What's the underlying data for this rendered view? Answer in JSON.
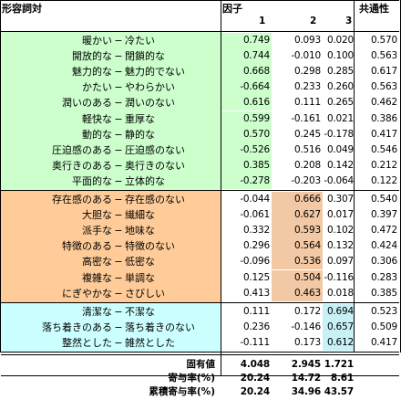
{
  "header": {
    "col_adjective": "形容詞対",
    "col_factor": "因子",
    "factor_numbers": [
      "1",
      "2",
      "3"
    ],
    "col_communality": "共通性"
  },
  "groups": [
    {
      "color": "#ccffcc",
      "rows": [
        {
          "left": "暖かい",
          "right": "冷たい",
          "f1": "0.749",
          "f2": "0.093",
          "f3": "0.020",
          "h": "0.570"
        },
        {
          "left": "開放的な",
          "right": "閉鎖的な",
          "f1": "0.744",
          "f2": "-0.010",
          "f3": "0.100",
          "h": "0.563"
        },
        {
          "left": "魅力的な",
          "right": "魅力的でない",
          "f1": "0.668",
          "f2": "0.298",
          "f3": "0.285",
          "h": "0.617"
        },
        {
          "left": "かたい",
          "right": "やわらかい",
          "f1": "-0.664",
          "f2": "0.233",
          "f3": "0.260",
          "h": "0.563"
        },
        {
          "left": "潤いのある",
          "right": "潤いのない",
          "f1": "0.616",
          "f2": "0.111",
          "f3": "0.265",
          "h": "0.462"
        },
        {
          "left": "軽快な",
          "right": "重厚な",
          "f1": "0.599",
          "f2": "-0.161",
          "f3": "0.021",
          "h": "0.386"
        },
        {
          "left": "動的な",
          "right": "静的な",
          "f1": "0.570",
          "f2": "0.245",
          "f3": "-0.178",
          "h": "0.417"
        },
        {
          "left": "圧迫感のある",
          "right": "圧迫感のない",
          "f1": "-0.526",
          "f2": "0.516",
          "f3": "0.049",
          "h": "0.546"
        },
        {
          "left": "奥行きのある",
          "right": "奥行きのない",
          "f1": "0.385",
          "f2": "0.208",
          "f3": "0.142",
          "h": "0.212"
        },
        {
          "left": "平面的な",
          "right": "立体的な",
          "f1": "-0.278",
          "f2": "-0.203",
          "f3": "-0.064",
          "h": "0.122"
        }
      ]
    },
    {
      "color": "#ffcc99",
      "rows": [
        {
          "left": "存在感のある",
          "right": "存在感のない",
          "f1": "-0.044",
          "f2": "0.666",
          "f3": "0.307",
          "h": "0.540"
        },
        {
          "left": "大胆な",
          "right": "繊細な",
          "f1": "-0.061",
          "f2": "0.627",
          "f3": "0.017",
          "h": "0.397"
        },
        {
          "left": "派手な",
          "right": "地味な",
          "f1": "0.332",
          "f2": "0.593",
          "f3": "0.102",
          "h": "0.472"
        },
        {
          "left": "特徴のある",
          "right": "特徴のない",
          "f1": "0.296",
          "f2": "0.564",
          "f3": "0.132",
          "h": "0.424"
        },
        {
          "left": "高密な",
          "right": "低密な",
          "f1": "-0.096",
          "f2": "0.536",
          "f3": "0.097",
          "h": "0.306"
        },
        {
          "left": "複雑な",
          "right": "単調な",
          "f1": "0.125",
          "f2": "0.504",
          "f3": "-0.116",
          "h": "0.283"
        },
        {
          "left": "にぎやかな",
          "right": "さびしい",
          "f1": "0.413",
          "f2": "0.463",
          "f3": "0.018",
          "h": "0.385"
        }
      ]
    },
    {
      "color": "#ccffff",
      "rows": [
        {
          "left": "清潔な",
          "right": "不潔な",
          "f1": "0.111",
          "f2": "0.172",
          "f3": "0.694",
          "h": "0.523"
        },
        {
          "left": "落ち着きのある",
          "right": "落ち着きのない",
          "f1": "0.236",
          "f2": "-0.146",
          "f3": "0.657",
          "h": "0.509"
        },
        {
          "left": "整然とした",
          "right": "雑然とした",
          "f1": "-0.111",
          "f2": "0.173",
          "f3": "0.612",
          "h": "0.417"
        }
      ]
    }
  ],
  "separator": "−",
  "footer": [
    {
      "label": "固有値",
      "f1": "4.048",
      "f2": "2.945",
      "f3": "1.721"
    },
    {
      "label": "寄与率(%)",
      "f1": "20.24",
      "f2": "14.72",
      "f3": "8.61"
    },
    {
      "label": "累積寄与率(%)",
      "f1": "20.24",
      "f2": "34.96",
      "f3": "43.57"
    }
  ]
}
